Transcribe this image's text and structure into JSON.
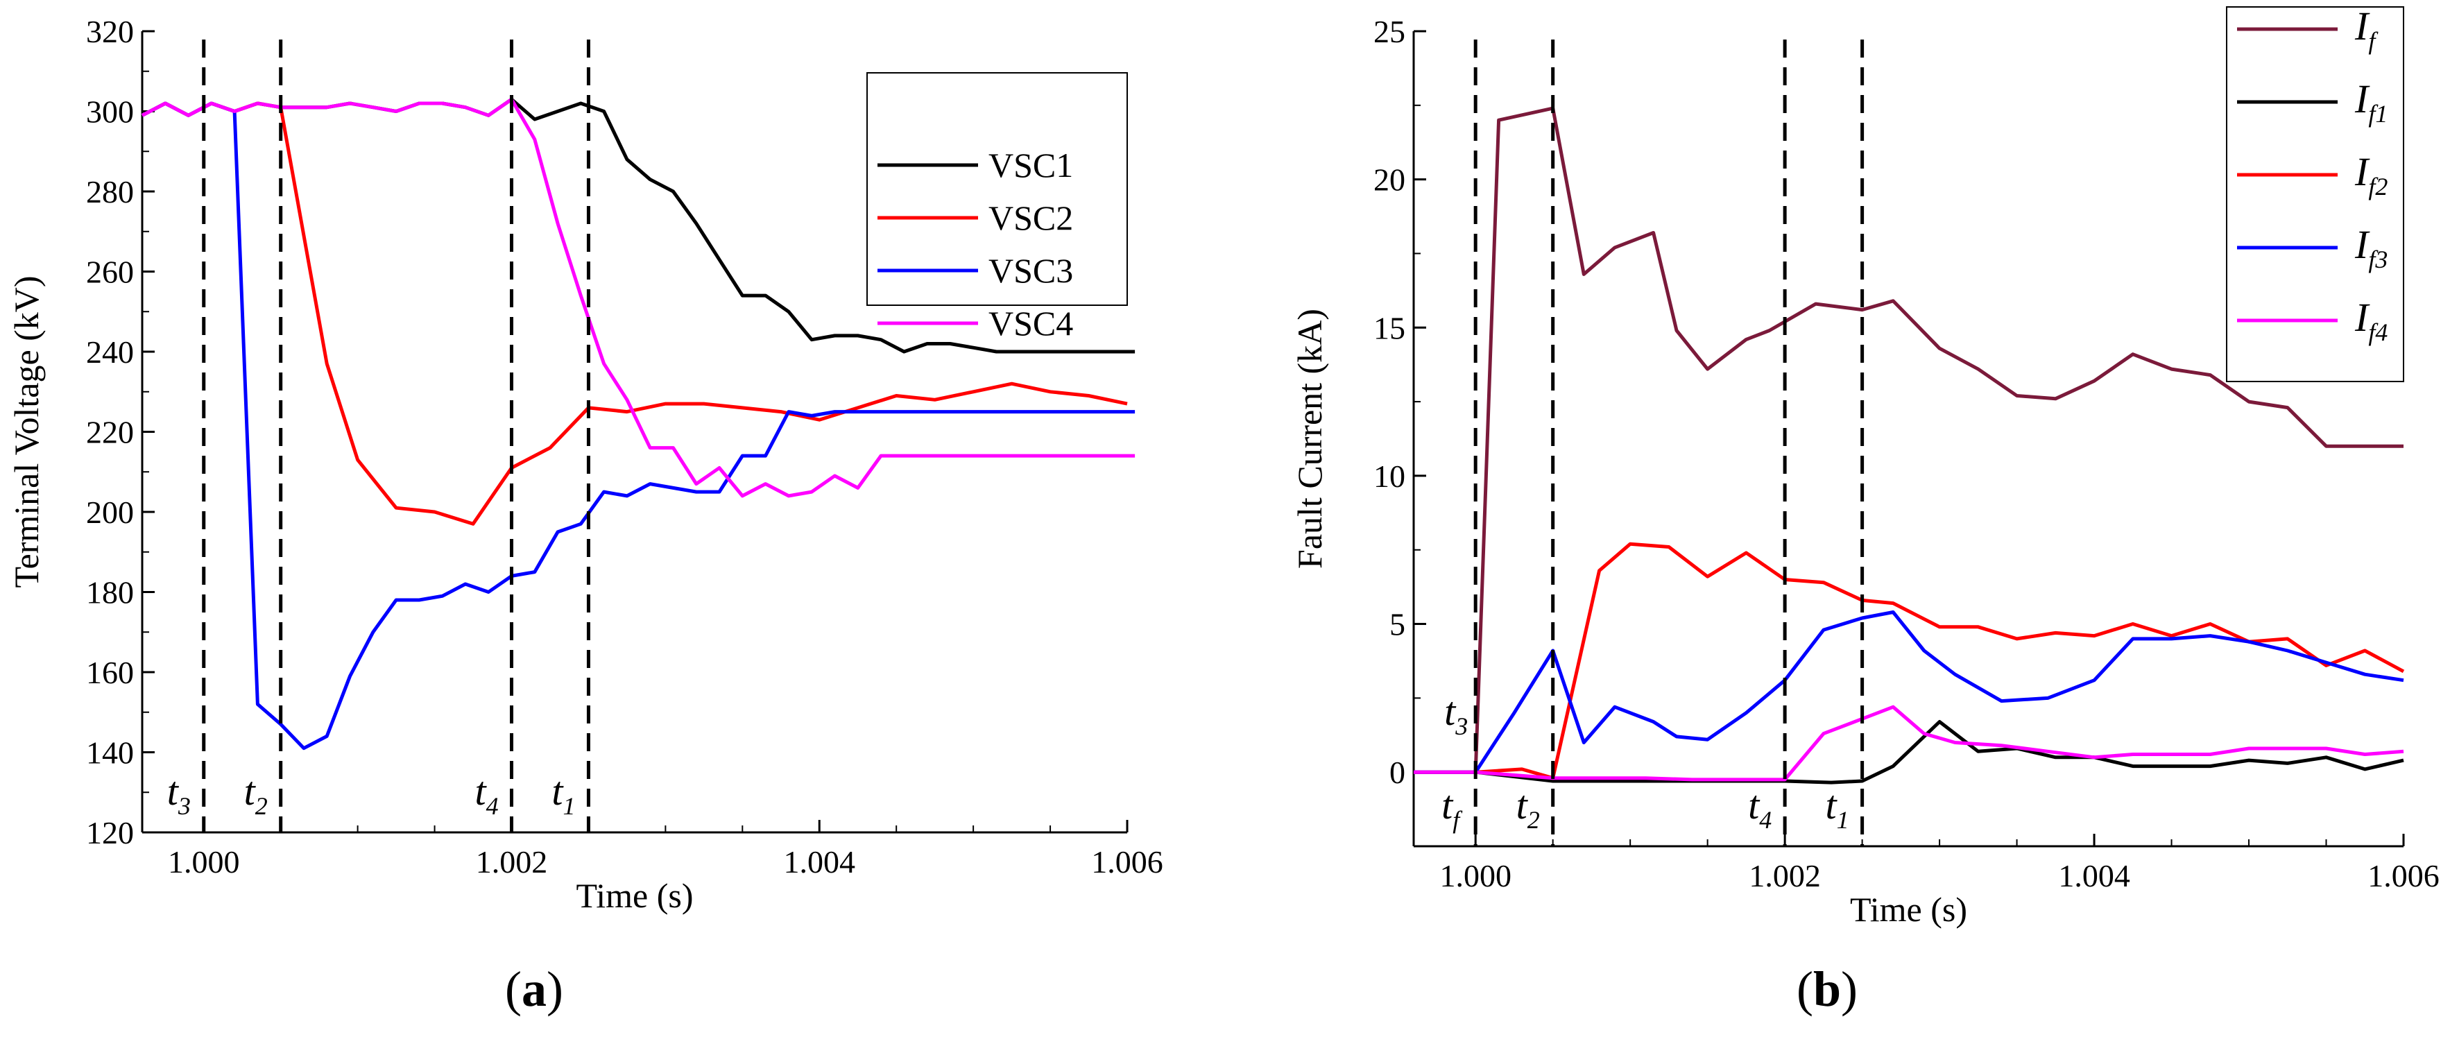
{
  "chart_data": [
    {
      "type": "line",
      "panel_label_open": "(",
      "panel_label": "a",
      "panel_label_close": ")",
      "xlabel": "Time (s)",
      "ylabel": "Terminal Voltage (kV)",
      "xlim": [
        0.9996,
        1.006
      ],
      "ylim": [
        120,
        320
      ],
      "xticks": [
        1.0,
        1.002,
        1.004,
        1.006
      ],
      "xtick_labels": [
        "1.000",
        "1.002",
        "1.004",
        "1.006"
      ],
      "yticks": [
        120,
        140,
        160,
        180,
        200,
        220,
        240,
        260,
        280,
        300,
        320
      ],
      "ytick_labels": [
        "120",
        "140",
        "160",
        "180",
        "200",
        "220",
        "240",
        "260",
        "280",
        "300",
        "320"
      ],
      "legend_position": "top-right",
      "vertical_markers": [
        {
          "x": 1.0,
          "main": "t",
          "sub": "3"
        },
        {
          "x": 1.0005,
          "main": "t",
          "sub": "2"
        },
        {
          "x": 1.002,
          "main": "t",
          "sub": "4"
        },
        {
          "x": 1.0025,
          "main": "t",
          "sub": "1"
        }
      ],
      "series": [
        {
          "name": "VSC1",
          "color": "#000000",
          "x": [
            0.9996,
            0.99975,
            0.9999,
            1.00005,
            1.0002,
            1.00035,
            1.0005,
            1.00065,
            1.0008,
            1.00095,
            1.0011,
            1.00125,
            1.0014,
            1.00155,
            1.0017,
            1.00185,
            1.002,
            1.00215,
            1.0023,
            1.00245,
            1.0026,
            1.00275,
            1.0029,
            1.00305,
            1.0032,
            1.00335,
            1.0035,
            1.00365,
            1.0038,
            1.00395,
            1.0041,
            1.00425,
            1.0044,
            1.00455,
            1.0047,
            1.00485,
            1.005,
            1.00515,
            1.0053,
            1.00545,
            1.0056,
            1.00575,
            1.0059,
            1.00605
          ],
          "y": [
            299,
            302,
            299,
            302,
            300,
            302,
            301,
            301,
            301,
            302,
            301,
            300,
            302,
            302,
            301,
            299,
            303,
            298,
            300,
            302,
            300,
            288,
            283,
            280,
            272,
            263,
            254,
            254,
            250,
            243,
            244,
            244,
            243,
            240,
            242,
            242,
            241,
            240,
            240,
            240,
            240,
            240,
            240,
            240
          ]
        },
        {
          "name": "VSC2",
          "color": "#ff0000",
          "x": [
            0.9996,
            0.99975,
            0.9999,
            1.00005,
            1.0002,
            1.00035,
            1.0005,
            1.0008,
            1.001,
            1.00125,
            1.0015,
            1.00175,
            1.002,
            1.00225,
            1.0025,
            1.00275,
            1.003,
            1.00325,
            1.0035,
            1.00375,
            1.004,
            1.00425,
            1.0045,
            1.00475,
            1.005,
            1.00525,
            1.0055,
            1.00575,
            1.006
          ],
          "y": [
            299,
            302,
            299,
            302,
            300,
            302,
            301,
            237,
            213,
            201,
            200,
            197,
            211,
            216,
            226,
            225,
            227,
            227,
            226,
            225,
            223,
            226,
            229,
            228,
            230,
            232,
            230,
            229,
            227
          ]
        },
        {
          "name": "VSC3",
          "color": "#0000ff",
          "x": [
            0.9996,
            0.99975,
            0.9999,
            1.00005,
            1.0002,
            1.00035,
            1.0005,
            1.00065,
            1.0008,
            1.00095,
            1.0011,
            1.00125,
            1.0014,
            1.00155,
            1.0017,
            1.00185,
            1.002,
            1.00215,
            1.0023,
            1.00245,
            1.0026,
            1.00275,
            1.0029,
            1.00305,
            1.0032,
            1.00335,
            1.0035,
            1.00365,
            1.0038,
            1.00395,
            1.0041,
            1.00425,
            1.0044,
            1.00455,
            1.0047,
            1.00485,
            1.005,
            1.00515,
            1.0053,
            1.00545,
            1.0056,
            1.00575,
            1.0059,
            1.00605
          ],
          "y": [
            299,
            302,
            299,
            302,
            300,
            152,
            147,
            141,
            144,
            159,
            170,
            178,
            178,
            179,
            182,
            180,
            184,
            185,
            195,
            197,
            205,
            204,
            207,
            206,
            205,
            205,
            214,
            214,
            225,
            224,
            225,
            225,
            225,
            225,
            225,
            225,
            225,
            225,
            225,
            225,
            225,
            225,
            225,
            225
          ]
        },
        {
          "name": "VSC4",
          "color": "#ff00ff",
          "x": [
            0.9996,
            0.99975,
            0.9999,
            1.00005,
            1.0002,
            1.00035,
            1.0005,
            1.00065,
            1.0008,
            1.00095,
            1.0011,
            1.00125,
            1.0014,
            1.00155,
            1.0017,
            1.00185,
            1.002,
            1.00215,
            1.0023,
            1.00245,
            1.0026,
            1.00275,
            1.0029,
            1.00305,
            1.0032,
            1.00335,
            1.0035,
            1.00365,
            1.0038,
            1.00395,
            1.0041,
            1.00425,
            1.0044,
            1.00455,
            1.0047,
            1.00485,
            1.005,
            1.00515,
            1.0053,
            1.00545,
            1.0056,
            1.00575,
            1.0059,
            1.00605
          ],
          "y": [
            299,
            302,
            299,
            302,
            300,
            302,
            301,
            301,
            301,
            302,
            301,
            300,
            302,
            302,
            301,
            299,
            303,
            293,
            272,
            254,
            237,
            228,
            216,
            216,
            207,
            211,
            204,
            207,
            204,
            205,
            209,
            206,
            214,
            214,
            214,
            214,
            214,
            214,
            214,
            214,
            214,
            214,
            214,
            214
          ]
        }
      ]
    },
    {
      "type": "line",
      "panel_label_open": "(",
      "panel_label": "b",
      "panel_label_close": ")",
      "xlabel": "Time (s)",
      "ylabel": "Fault Current (kA)",
      "xlim": [
        0.9996,
        1.006
      ],
      "ylim": [
        -2.5,
        25
      ],
      "xticks": [
        1.0,
        1.002,
        1.004,
        1.006
      ],
      "xtick_labels": [
        "1.000",
        "1.002",
        "1.004",
        "1.006"
      ],
      "yticks": [
        0,
        5,
        10,
        15,
        20,
        25
      ],
      "ytick_labels": [
        "0",
        "5",
        "10",
        "15",
        "20",
        "25"
      ],
      "legend_position": "top-right",
      "vertical_markers": [
        {
          "x": 1.0,
          "main": "t",
          "sub": "f",
          "extra_main": "t",
          "extra_sub": "3"
        },
        {
          "x": 1.0005,
          "main": "t",
          "sub": "2"
        },
        {
          "x": 1.002,
          "main": "t",
          "sub": "4"
        },
        {
          "x": 1.0025,
          "main": "t",
          "sub": "1"
        }
      ],
      "series": [
        {
          "name": "I",
          "name_sub": "f",
          "color": "#7b1a3a",
          "x": [
            0.9996,
            1.0,
            1.00015,
            1.0005,
            1.0007,
            1.0009,
            1.00115,
            1.0013,
            1.0015,
            1.00175,
            1.0019,
            1.0022,
            1.0025,
            1.0027,
            1.003,
            1.00325,
            1.0035,
            1.00375,
            1.004,
            1.00425,
            1.0045,
            1.00475,
            1.005,
            1.00525,
            1.0055,
            1.00575,
            1.006
          ],
          "y": [
            0,
            0,
            22,
            22.4,
            16.8,
            17.7,
            18.2,
            14.9,
            13.6,
            14.6,
            14.9,
            15.8,
            15.6,
            15.9,
            14.3,
            13.6,
            12.7,
            12.6,
            13.2,
            14.1,
            13.6,
            13.4,
            12.5,
            12.3,
            11,
            11,
            11
          ]
        },
        {
          "name": "I",
          "name_sub": "f1",
          "color": "#000000",
          "x": [
            0.9996,
            1.0,
            1.0005,
            1.0008,
            1.0011,
            1.0014,
            1.0017,
            1.002,
            1.0023,
            1.0025,
            1.0027,
            1.003,
            1.00325,
            1.0035,
            1.00375,
            1.004,
            1.00425,
            1.0045,
            1.00475,
            1.005,
            1.00525,
            1.0055,
            1.00575,
            1.006
          ],
          "y": [
            0,
            0,
            -0.3,
            -0.3,
            -0.3,
            -0.3,
            -0.3,
            -0.3,
            -0.35,
            -0.3,
            0.2,
            1.7,
            0.7,
            0.8,
            0.5,
            0.5,
            0.2,
            0.2,
            0.2,
            0.4,
            0.3,
            0.5,
            0.1,
            0.4
          ]
        },
        {
          "name": "I",
          "name_sub": "f2",
          "color": "#ff0000",
          "x": [
            0.9996,
            1.0,
            1.0003,
            1.0005,
            1.0008,
            1.001,
            1.00125,
            1.0015,
            1.00175,
            1.002,
            1.00225,
            1.0025,
            1.0027,
            1.003,
            1.00325,
            1.0035,
            1.00375,
            1.004,
            1.00425,
            1.0045,
            1.00475,
            1.005,
            1.00525,
            1.0055,
            1.00575,
            1.006
          ],
          "y": [
            0,
            0,
            0.1,
            -0.2,
            6.8,
            7.7,
            7.6,
            6.6,
            7.4,
            6.5,
            6.4,
            5.8,
            5.7,
            4.9,
            4.9,
            4.5,
            4.7,
            4.6,
            5.0,
            4.6,
            5.0,
            4.4,
            4.5,
            3.6,
            4.1,
            3.4
          ]
        },
        {
          "name": "I",
          "name_sub": "f3",
          "color": "#0000ff",
          "x": [
            0.9996,
            1.0,
            1.00025,
            1.0005,
            1.0007,
            1.0009,
            1.00115,
            1.0013,
            1.0015,
            1.00175,
            1.002,
            1.00225,
            1.0025,
            1.0027,
            1.0029,
            1.0031,
            1.0034,
            1.0037,
            1.004,
            1.00425,
            1.0045,
            1.00475,
            1.005,
            1.00525,
            1.0055,
            1.00575,
            1.006
          ],
          "y": [
            0,
            0,
            2,
            4.1,
            1,
            2.2,
            1.7,
            1.2,
            1.1,
            2,
            3.1,
            4.8,
            5.2,
            5.4,
            4.1,
            3.3,
            2.4,
            2.5,
            3.1,
            4.5,
            4.5,
            4.6,
            4.4,
            4.1,
            3.7,
            3.3,
            3.1
          ]
        },
        {
          "name": "I",
          "name_sub": "f4",
          "color": "#ff00ff",
          "x": [
            0.9996,
            1.0,
            1.0005,
            1.0008,
            1.0011,
            1.0014,
            1.0017,
            1.002,
            1.00225,
            1.0025,
            1.0027,
            1.0029,
            1.0031,
            1.0034,
            1.0037,
            1.004,
            1.00425,
            1.0045,
            1.00475,
            1.005,
            1.00525,
            1.0055,
            1.00575,
            1.006
          ],
          "y": [
            0,
            0,
            -0.2,
            -0.2,
            -0.2,
            -0.25,
            -0.25,
            -0.25,
            1.3,
            1.8,
            2.2,
            1.3,
            1.0,
            0.9,
            0.7,
            0.5,
            0.6,
            0.6,
            0.6,
            0.8,
            0.8,
            0.8,
            0.6,
            0.7
          ]
        }
      ]
    }
  ]
}
